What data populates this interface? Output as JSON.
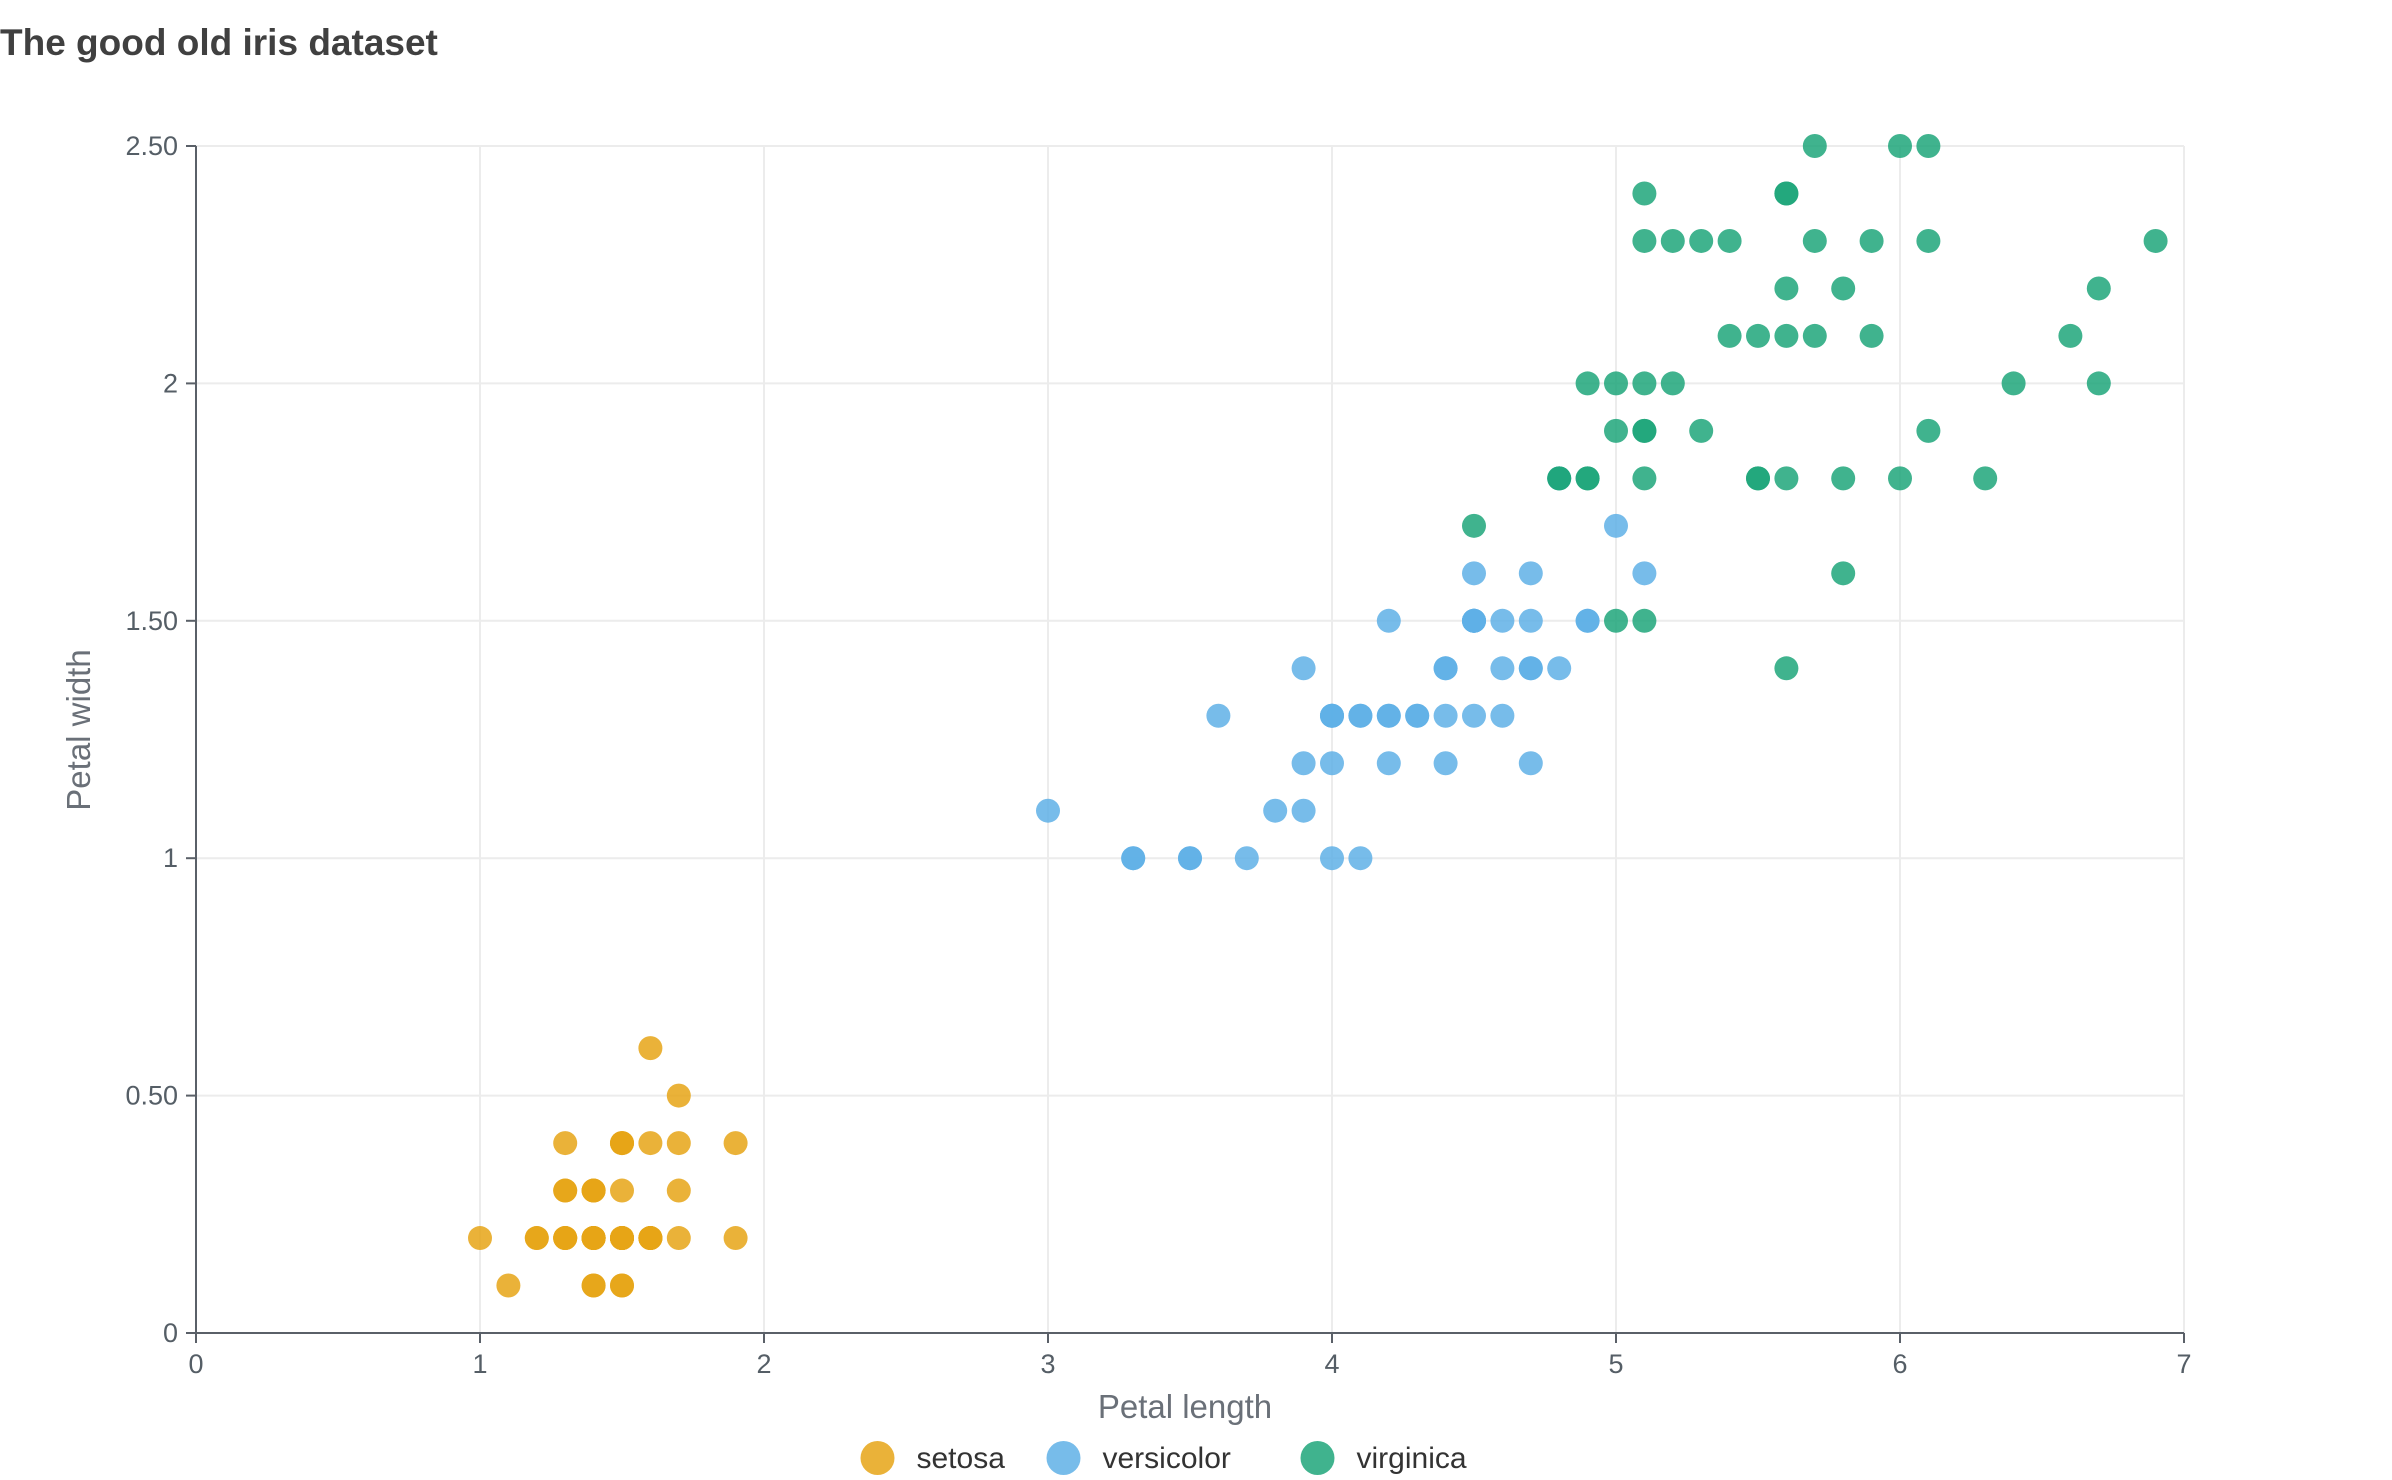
{
  "chart_data": {
    "type": "scatter",
    "title": "The good old iris dataset",
    "xlabel": "Petal length",
    "ylabel": "Petal width",
    "xlim": [
      0,
      7
    ],
    "ylim": [
      0,
      2.5
    ],
    "x_ticks": [
      0,
      1,
      2,
      3,
      4,
      5,
      6,
      7
    ],
    "x_tick_labels": [
      "0",
      "1",
      "2",
      "3",
      "4",
      "5",
      "6",
      "7"
    ],
    "y_ticks": [
      0,
      0.5,
      1,
      1.5,
      2,
      2.5
    ],
    "y_tick_labels": [
      "0",
      "0.50",
      "1",
      "1.50",
      "2",
      "2.50"
    ],
    "grid": true,
    "legend_position": "bottom-center",
    "series": [
      {
        "name": "setosa",
        "color": "#E6A416",
        "points": [
          [
            1.4,
            0.2
          ],
          [
            1.4,
            0.2
          ],
          [
            1.3,
            0.2
          ],
          [
            1.5,
            0.2
          ],
          [
            1.4,
            0.2
          ],
          [
            1.7,
            0.4
          ],
          [
            1.4,
            0.3
          ],
          [
            1.5,
            0.2
          ],
          [
            1.4,
            0.2
          ],
          [
            1.5,
            0.1
          ],
          [
            1.5,
            0.2
          ],
          [
            1.6,
            0.2
          ],
          [
            1.4,
            0.1
          ],
          [
            1.1,
            0.1
          ],
          [
            1.2,
            0.2
          ],
          [
            1.5,
            0.4
          ],
          [
            1.3,
            0.4
          ],
          [
            1.4,
            0.3
          ],
          [
            1.7,
            0.3
          ],
          [
            1.5,
            0.3
          ],
          [
            1.7,
            0.2
          ],
          [
            1.5,
            0.4
          ],
          [
            1.0,
            0.2
          ],
          [
            1.7,
            0.5
          ],
          [
            1.9,
            0.2
          ],
          [
            1.6,
            0.2
          ],
          [
            1.6,
            0.4
          ],
          [
            1.5,
            0.2
          ],
          [
            1.4,
            0.2
          ],
          [
            1.6,
            0.2
          ],
          [
            1.6,
            0.2
          ],
          [
            1.5,
            0.4
          ],
          [
            1.5,
            0.1
          ],
          [
            1.4,
            0.2
          ],
          [
            1.5,
            0.2
          ],
          [
            1.2,
            0.2
          ],
          [
            1.3,
            0.2
          ],
          [
            1.4,
            0.1
          ],
          [
            1.3,
            0.2
          ],
          [
            1.5,
            0.2
          ],
          [
            1.3,
            0.3
          ],
          [
            1.3,
            0.3
          ],
          [
            1.3,
            0.2
          ],
          [
            1.6,
            0.6
          ],
          [
            1.9,
            0.4
          ],
          [
            1.4,
            0.3
          ],
          [
            1.6,
            0.2
          ],
          [
            1.4,
            0.2
          ],
          [
            1.5,
            0.2
          ],
          [
            1.4,
            0.2
          ]
        ]
      },
      {
        "name": "versicolor",
        "color": "#5FB0E6",
        "points": [
          [
            4.7,
            1.4
          ],
          [
            4.5,
            1.5
          ],
          [
            4.9,
            1.5
          ],
          [
            4.0,
            1.3
          ],
          [
            4.6,
            1.5
          ],
          [
            4.5,
            1.3
          ],
          [
            4.7,
            1.6
          ],
          [
            3.3,
            1.0
          ],
          [
            4.6,
            1.3
          ],
          [
            3.9,
            1.4
          ],
          [
            3.5,
            1.0
          ],
          [
            4.2,
            1.5
          ],
          [
            4.0,
            1.0
          ],
          [
            4.7,
            1.4
          ],
          [
            3.6,
            1.3
          ],
          [
            4.4,
            1.4
          ],
          [
            4.5,
            1.5
          ],
          [
            4.1,
            1.0
          ],
          [
            4.5,
            1.5
          ],
          [
            3.9,
            1.1
          ],
          [
            4.8,
            1.8
          ],
          [
            4.0,
            1.3
          ],
          [
            4.9,
            1.5
          ],
          [
            4.7,
            1.2
          ],
          [
            4.3,
            1.3
          ],
          [
            4.4,
            1.4
          ],
          [
            4.8,
            1.4
          ],
          [
            5.0,
            1.7
          ],
          [
            4.5,
            1.5
          ],
          [
            3.5,
            1.0
          ],
          [
            3.8,
            1.1
          ],
          [
            3.7,
            1.0
          ],
          [
            3.9,
            1.2
          ],
          [
            5.1,
            1.6
          ],
          [
            4.5,
            1.5
          ],
          [
            4.5,
            1.6
          ],
          [
            4.7,
            1.5
          ],
          [
            4.4,
            1.3
          ],
          [
            4.1,
            1.3
          ],
          [
            4.0,
            1.3
          ],
          [
            4.4,
            1.2
          ],
          [
            4.6,
            1.4
          ],
          [
            4.0,
            1.2
          ],
          [
            3.3,
            1.0
          ],
          [
            4.2,
            1.3
          ],
          [
            4.2,
            1.2
          ],
          [
            4.2,
            1.3
          ],
          [
            4.3,
            1.3
          ],
          [
            3.0,
            1.1
          ],
          [
            4.1,
            1.3
          ]
        ]
      },
      {
        "name": "virginica",
        "color": "#1FA67A",
        "points": [
          [
            6.0,
            2.5
          ],
          [
            5.1,
            1.9
          ],
          [
            5.9,
            2.1
          ],
          [
            5.6,
            1.8
          ],
          [
            5.8,
            2.2
          ],
          [
            6.6,
            2.1
          ],
          [
            4.5,
            1.7
          ],
          [
            6.3,
            1.8
          ],
          [
            5.8,
            1.8
          ],
          [
            6.1,
            2.5
          ],
          [
            5.1,
            2.0
          ],
          [
            5.3,
            1.9
          ],
          [
            5.5,
            2.1
          ],
          [
            5.0,
            2.0
          ],
          [
            5.1,
            2.4
          ],
          [
            5.3,
            2.3
          ],
          [
            5.5,
            1.8
          ],
          [
            6.7,
            2.2
          ],
          [
            6.9,
            2.3
          ],
          [
            5.0,
            1.5
          ],
          [
            5.7,
            2.3
          ],
          [
            4.9,
            2.0
          ],
          [
            6.7,
            2.0
          ],
          [
            4.9,
            1.8
          ],
          [
            5.7,
            2.1
          ],
          [
            6.0,
            1.8
          ],
          [
            4.8,
            1.8
          ],
          [
            4.9,
            1.8
          ],
          [
            5.6,
            2.1
          ],
          [
            5.8,
            1.6
          ],
          [
            6.1,
            1.9
          ],
          [
            6.4,
            2.0
          ],
          [
            5.6,
            2.2
          ],
          [
            5.1,
            1.5
          ],
          [
            5.6,
            1.4
          ],
          [
            6.1,
            2.3
          ],
          [
            5.6,
            2.4
          ],
          [
            5.5,
            1.8
          ],
          [
            4.8,
            1.8
          ],
          [
            5.4,
            2.1
          ],
          [
            5.6,
            2.4
          ],
          [
            5.1,
            2.3
          ],
          [
            5.1,
            1.9
          ],
          [
            5.9,
            2.3
          ],
          [
            5.7,
            2.5
          ],
          [
            5.2,
            2.3
          ],
          [
            5.0,
            1.9
          ],
          [
            5.2,
            2.0
          ],
          [
            5.4,
            2.3
          ],
          [
            5.1,
            1.8
          ]
        ]
      }
    ]
  }
}
